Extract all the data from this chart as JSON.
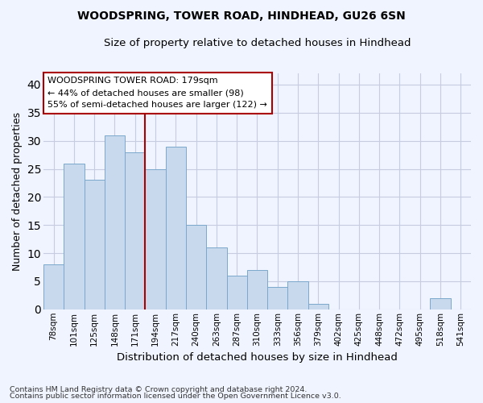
{
  "title1": "WOODSPRING, TOWER ROAD, HINDHEAD, GU26 6SN",
  "title2": "Size of property relative to detached houses in Hindhead",
  "xlabel": "Distribution of detached houses by size in Hindhead",
  "ylabel": "Number of detached properties",
  "categories": [
    "78sqm",
    "101sqm",
    "125sqm",
    "148sqm",
    "171sqm",
    "194sqm",
    "217sqm",
    "240sqm",
    "263sqm",
    "287sqm",
    "310sqm",
    "333sqm",
    "356sqm",
    "379sqm",
    "402sqm",
    "425sqm",
    "448sqm",
    "472sqm",
    "495sqm",
    "518sqm",
    "541sqm"
  ],
  "values": [
    8,
    26,
    23,
    31,
    28,
    25,
    29,
    15,
    11,
    6,
    7,
    4,
    5,
    1,
    0,
    0,
    0,
    0,
    0,
    2,
    0
  ],
  "bar_color": "#c8d8ed",
  "bar_edge_color": "#7aa8cc",
  "vline_x_index": 4,
  "vline_color": "#aa0000",
  "annotation_line1": "WOODSPRING TOWER ROAD: 179sqm",
  "annotation_line2": "← 44% of detached houses are smaller (98)",
  "annotation_line3": "55% of semi-detached houses are larger (122) →",
  "annotation_box_color": "white",
  "annotation_box_edge": "#aa0000",
  "footnote1": "Contains HM Land Registry data © Crown copyright and database right 2024.",
  "footnote2": "Contains public sector information licensed under the Open Government Licence v3.0.",
  "bg_color": "#f0f4ff",
  "grid_color": "#c8cce0",
  "ylim": [
    0,
    42
  ],
  "yticks": [
    0,
    5,
    10,
    15,
    20,
    25,
    30,
    35,
    40
  ]
}
